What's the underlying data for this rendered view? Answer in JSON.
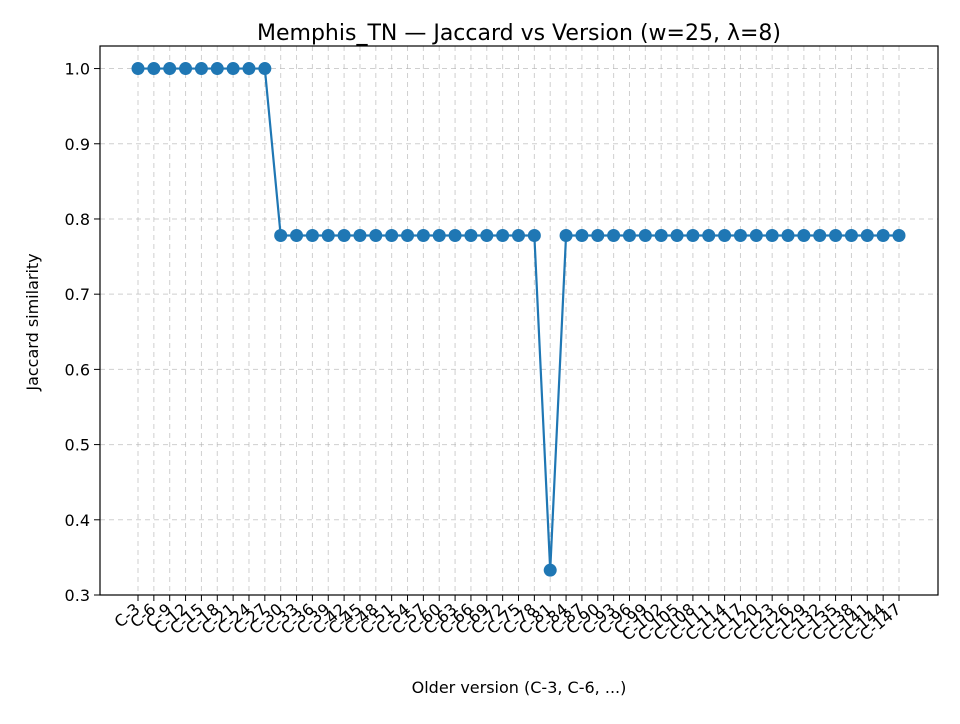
{
  "chart_data": {
    "type": "line",
    "title": "Memphis_TN — Jaccard vs Version (w=25, λ=8)",
    "xlabel": "Older version (C-3, C-6, ...)",
    "ylabel": "Jaccard similarity",
    "ylim": [
      0.3,
      1.03
    ],
    "yticks": [
      0.3,
      0.4,
      0.5,
      0.6,
      0.7,
      0.8,
      0.9,
      1.0
    ],
    "ytick_labels": [
      "0.3",
      "0.4",
      "0.5",
      "0.6",
      "0.7",
      "0.8",
      "0.9",
      "1.0"
    ],
    "grid": true,
    "series_color": "#1f77b4",
    "categories": [
      "C-3",
      "C-6",
      "C-9",
      "C-12",
      "C-15",
      "C-18",
      "C-21",
      "C-24",
      "C-27",
      "C-30",
      "C-33",
      "C-36",
      "C-39",
      "C-42",
      "C-45",
      "C-48",
      "C-51",
      "C-54",
      "C-57",
      "C-60",
      "C-63",
      "C-66",
      "C-69",
      "C-72",
      "C-75",
      "C-78",
      "C-81",
      "C-84",
      "C-87",
      "C-90",
      "C-93",
      "C-96",
      "C-99",
      "C-102",
      "C-105",
      "C-108",
      "C-111",
      "C-114",
      "C-117",
      "C-120",
      "C-123",
      "C-126",
      "C-129",
      "C-132",
      "C-135",
      "C-138",
      "C-141",
      "C-144",
      "C-147"
    ],
    "values": [
      1.0,
      1.0,
      1.0,
      1.0,
      1.0,
      1.0,
      1.0,
      1.0,
      1.0,
      0.778,
      0.778,
      0.778,
      0.778,
      0.778,
      0.778,
      0.778,
      0.778,
      0.778,
      0.778,
      0.778,
      0.778,
      0.778,
      0.778,
      0.778,
      0.778,
      0.778,
      0.333,
      0.778,
      0.778,
      0.778,
      0.778,
      0.778,
      0.778,
      0.778,
      0.778,
      0.778,
      0.778,
      0.778,
      0.778,
      0.778,
      0.778,
      0.778,
      0.778,
      0.778,
      0.778,
      0.778,
      0.778,
      0.778,
      0.778
    ]
  }
}
